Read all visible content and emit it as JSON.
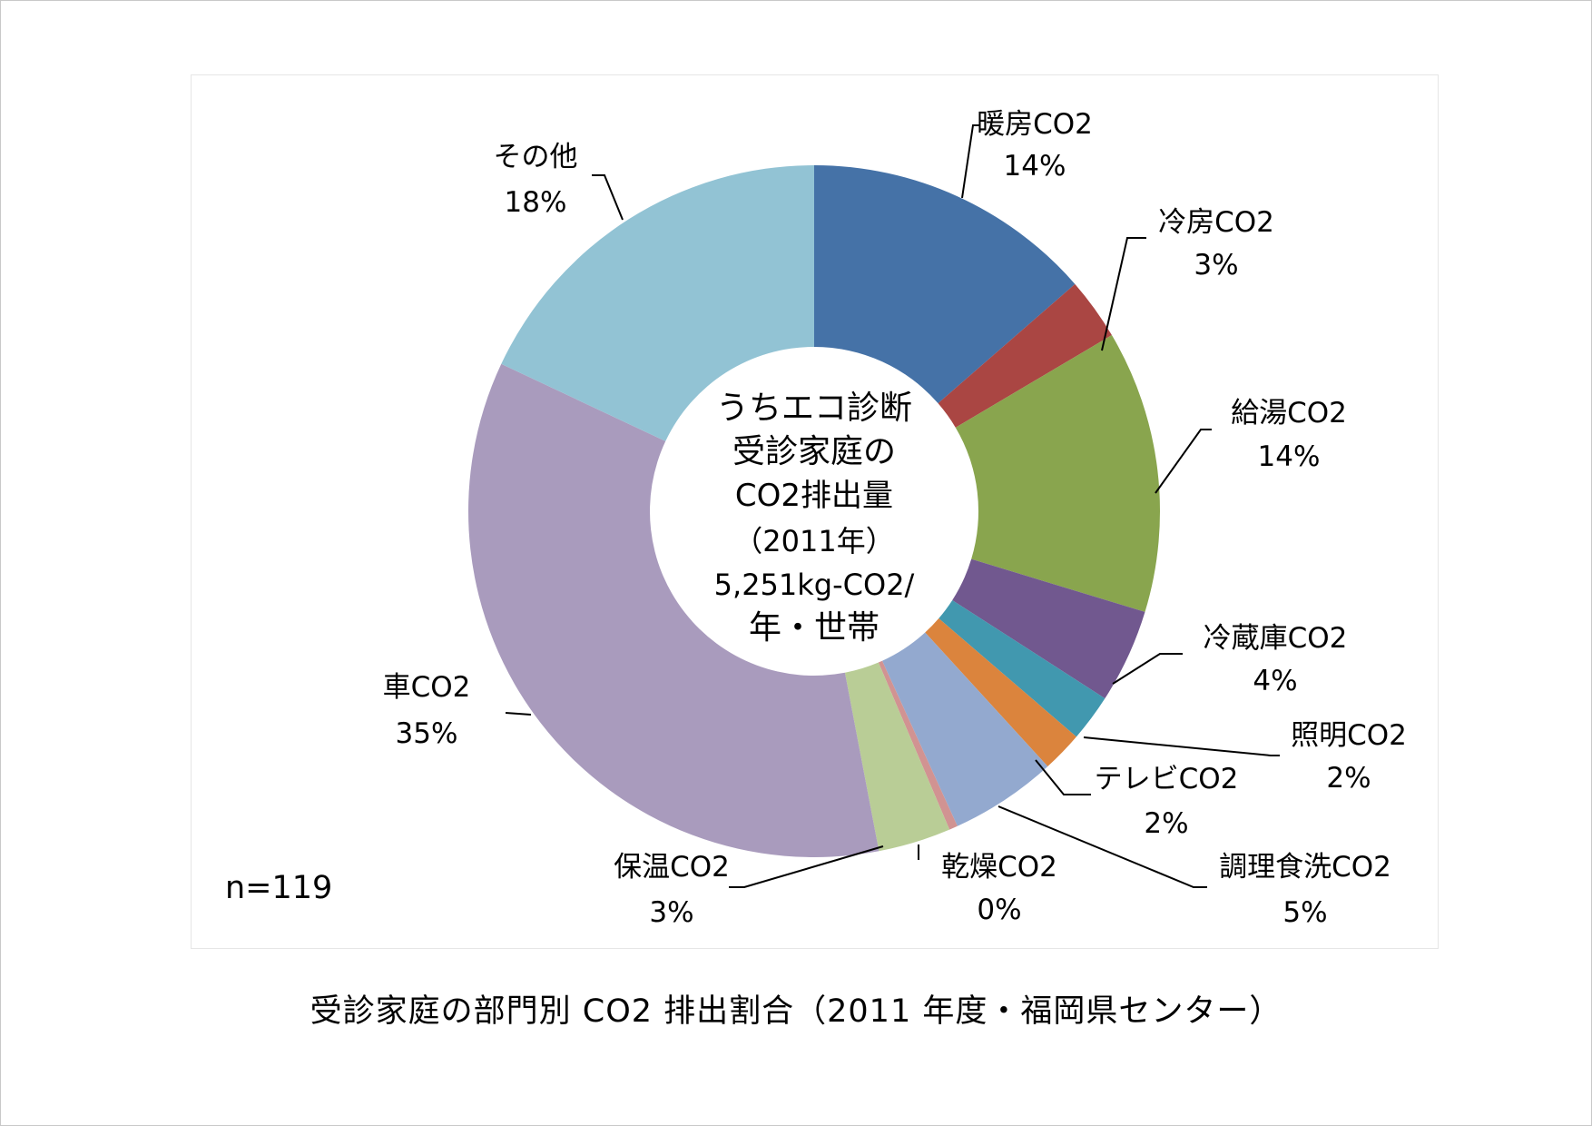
{
  "chart_data": {
    "type": "pie",
    "donut": true,
    "center_text": [
      "うちエコ診断",
      "受診家庭の",
      "CO2排出量",
      "（2011年）",
      "5,251kg-CO2/",
      "年・世帯"
    ],
    "categories": [
      "暖房CO2",
      "冷房CO2",
      "給湯CO2",
      "冷蔵庫CO2",
      "照明CO2",
      "テレビCO2",
      "調理食洗CO2",
      "乾燥CO2",
      "保温CO2",
      "車CO2",
      "その他"
    ],
    "values": [
      14,
      3,
      14,
      4,
      2,
      2,
      5,
      0,
      3,
      35,
      18
    ],
    "labels": [
      "14%",
      "3%",
      "14%",
      "4%",
      "2%",
      "2%",
      "5%",
      "0%",
      "3%",
      "35%",
      "18%"
    ],
    "colors": [
      "#4572A7",
      "#AA4643",
      "#89A54E",
      "#71588F",
      "#4198AF",
      "#DB843D",
      "#93A9CF",
      "#D19392",
      "#B9CD96",
      "#A99BBD",
      "#92C3D4"
    ],
    "sample_size": "n=119",
    "caption": "受診家庭の部門別 CO2 排出割合（2011 年度・福岡県センター）"
  }
}
